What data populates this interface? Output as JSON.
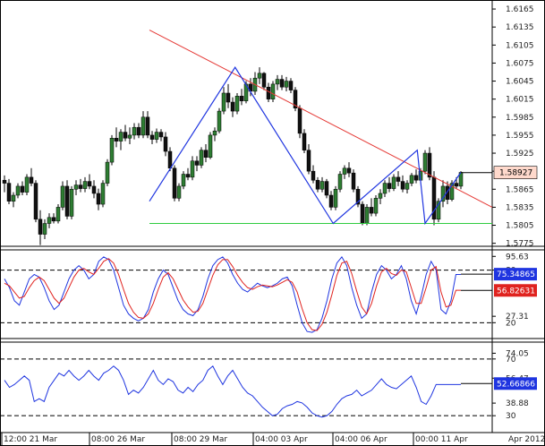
{
  "chart_data": [
    {
      "type": "candlestick",
      "panel": "price",
      "y_ticks": [
        "1.6165",
        "1.6135",
        "1.6105",
        "1.6075",
        "1.6045",
        "1.6015",
        "1.5985",
        "1.5955",
        "1.5925",
        "1.5895",
        "1.5865",
        "1.5835",
        "1.5805",
        "1.5775"
      ],
      "ylim": [
        1.577,
        1.618
      ],
      "current_price": "1.58927",
      "colors": {
        "bull": "#2e7d32",
        "bear": "#111111",
        "resistance": "#e53935",
        "support": "#2ecc40",
        "pattern": "#1f35e0",
        "tag_bg": "#ffd9cc"
      },
      "ohlc": [
        [
          1.588,
          1.5888,
          1.586,
          1.5875
        ],
        [
          1.5875,
          1.5882,
          1.584,
          1.5845
        ],
        [
          1.5845,
          1.586,
          1.5835,
          1.5855
        ],
        [
          1.5855,
          1.5875,
          1.585,
          1.587
        ],
        [
          1.587,
          1.5878,
          1.5855,
          1.586
        ],
        [
          1.586,
          1.589,
          1.5855,
          1.5885
        ],
        [
          1.5885,
          1.59,
          1.587,
          1.5875
        ],
        [
          1.5875,
          1.588,
          1.581,
          1.5815
        ],
        [
          1.5815,
          1.583,
          1.5772,
          1.579
        ],
        [
          1.579,
          1.5815,
          1.5782,
          1.5808
        ],
        [
          1.5808,
          1.5825,
          1.58,
          1.5818
        ],
        [
          1.5818,
          1.5825,
          1.5808,
          1.5812
        ],
        [
          1.5812,
          1.584,
          1.5808,
          1.5835
        ],
        [
          1.5835,
          1.5878,
          1.583,
          1.587
        ],
        [
          1.587,
          1.588,
          1.5815,
          1.582
        ],
        [
          1.582,
          1.587,
          1.5815,
          1.5865
        ],
        [
          1.5865,
          1.588,
          1.5855,
          1.5872
        ],
        [
          1.5872,
          1.5882,
          1.586,
          1.5866
        ],
        [
          1.5866,
          1.5885,
          1.586,
          1.5878
        ],
        [
          1.5878,
          1.589,
          1.5865,
          1.587
        ],
        [
          1.587,
          1.588,
          1.585,
          1.5858
        ],
        [
          1.5858,
          1.5866,
          1.583,
          1.584
        ],
        [
          1.584,
          1.588,
          1.5835,
          1.5875
        ],
        [
          1.5875,
          1.5915,
          1.587,
          1.591
        ],
        [
          1.591,
          1.5955,
          1.5905,
          1.595
        ],
        [
          1.595,
          1.5968,
          1.5935,
          1.5945
        ],
        [
          1.5945,
          1.5965,
          1.593,
          1.596
        ],
        [
          1.596,
          1.5972,
          1.5945,
          1.595
        ],
        [
          1.595,
          1.5968,
          1.594,
          1.5955
        ],
        [
          1.5955,
          1.5975,
          1.5948,
          1.5968
        ],
        [
          1.5968,
          1.5975,
          1.595,
          1.5955
        ],
        [
          1.5955,
          1.5995,
          1.595,
          1.5985
        ],
        [
          1.5985,
          1.5995,
          1.595,
          1.5955
        ],
        [
          1.5955,
          1.5962,
          1.594,
          1.5948
        ],
        [
          1.5948,
          1.5966,
          1.5942,
          1.596
        ],
        [
          1.596,
          1.5965,
          1.5945,
          1.5952
        ],
        [
          1.5952,
          1.596,
          1.592,
          1.5928
        ],
        [
          1.5928,
          1.5935,
          1.5895,
          1.59
        ],
        [
          1.59,
          1.5905,
          1.5845,
          1.585
        ],
        [
          1.585,
          1.5875,
          1.5845,
          1.587
        ],
        [
          1.587,
          1.5895,
          1.5865,
          1.589
        ],
        [
          1.589,
          1.59,
          1.588,
          1.5885
        ],
        [
          1.5885,
          1.592,
          1.588,
          1.5912
        ],
        [
          1.5912,
          1.592,
          1.5895,
          1.5905
        ],
        [
          1.5905,
          1.5935,
          1.59,
          1.593
        ],
        [
          1.593,
          1.594,
          1.591,
          1.5918
        ],
        [
          1.5918,
          1.596,
          1.5915,
          1.5955
        ],
        [
          1.5955,
          1.5968,
          1.5945,
          1.5962
        ],
        [
          1.5962,
          1.6,
          1.5958,
          1.5995
        ],
        [
          1.5995,
          1.6035,
          1.599,
          1.6025
        ],
        [
          1.6025,
          1.604,
          1.6,
          1.601
        ],
        [
          1.601,
          1.6018,
          1.5985,
          1.5995
        ],
        [
          1.5995,
          1.6025,
          1.599,
          1.602
        ],
        [
          1.602,
          1.6032,
          1.6005,
          1.6012
        ],
        [
          1.6012,
          1.6045,
          1.6008,
          1.604
        ],
        [
          1.604,
          1.605,
          1.602,
          1.6028
        ],
        [
          1.6028,
          1.606,
          1.6022,
          1.605
        ],
        [
          1.605,
          1.6068,
          1.604,
          1.6058
        ],
        [
          1.6058,
          1.606,
          1.603,
          1.6035
        ],
        [
          1.6035,
          1.6042,
          1.601,
          1.6015
        ],
        [
          1.6015,
          1.6045,
          1.601,
          1.604
        ],
        [
          1.604,
          1.6055,
          1.603,
          1.6048
        ],
        [
          1.6048,
          1.6055,
          1.603,
          1.6035
        ],
        [
          1.6035,
          1.6052,
          1.6028,
          1.6045
        ],
        [
          1.6045,
          1.605,
          1.6025,
          1.603
        ],
        [
          1.603,
          1.6035,
          1.5995,
          1.6
        ],
        [
          1.6,
          1.6005,
          1.595,
          1.5958
        ],
        [
          1.5958,
          1.5965,
          1.5925,
          1.593
        ],
        [
          1.593,
          1.594,
          1.589,
          1.5895
        ],
        [
          1.5895,
          1.5905,
          1.5875,
          1.588
        ],
        [
          1.588,
          1.5885,
          1.586,
          1.5865
        ],
        [
          1.5865,
          1.5885,
          1.586,
          1.5878
        ],
        [
          1.5878,
          1.5882,
          1.585,
          1.5855
        ],
        [
          1.5855,
          1.5862,
          1.583,
          1.5835
        ],
        [
          1.5835,
          1.587,
          1.583,
          1.5865
        ],
        [
          1.5865,
          1.5895,
          1.586,
          1.589
        ],
        [
          1.589,
          1.5905,
          1.5882,
          1.59
        ],
        [
          1.59,
          1.591,
          1.5885,
          1.5892
        ],
        [
          1.5892,
          1.5898,
          1.586,
          1.5865
        ],
        [
          1.5865,
          1.587,
          1.5835,
          1.584
        ],
        [
          1.584,
          1.5845,
          1.5805,
          1.5808
        ],
        [
          1.5808,
          1.584,
          1.5805,
          1.5835
        ],
        [
          1.5835,
          1.585,
          1.582,
          1.5825
        ],
        [
          1.5825,
          1.5855,
          1.582,
          1.585
        ],
        [
          1.585,
          1.5865,
          1.584,
          1.5858
        ],
        [
          1.5858,
          1.588,
          1.5852,
          1.5875
        ],
        [
          1.5875,
          1.5885,
          1.586,
          1.5866
        ],
        [
          1.5866,
          1.589,
          1.5862,
          1.5885
        ],
        [
          1.5885,
          1.5895,
          1.587,
          1.5878
        ],
        [
          1.5878,
          1.5888,
          1.586,
          1.5865
        ],
        [
          1.5865,
          1.588,
          1.5858,
          1.5875
        ],
        [
          1.5875,
          1.5892,
          1.587,
          1.5888
        ],
        [
          1.5888,
          1.5898,
          1.5875,
          1.588
        ],
        [
          1.588,
          1.59,
          1.5875,
          1.5895
        ],
        [
          1.5895,
          1.593,
          1.589,
          1.5925
        ],
        [
          1.5925,
          1.5935,
          1.588,
          1.5885
        ],
        [
          1.5885,
          1.5895,
          1.5805,
          1.5815
        ],
        [
          1.5815,
          1.585,
          1.581,
          1.5845
        ],
        [
          1.5845,
          1.588,
          1.5835,
          1.587
        ],
        [
          1.587,
          1.5878,
          1.584,
          1.5848
        ],
        [
          1.5848,
          1.588,
          1.5845,
          1.5875
        ],
        [
          1.5875,
          1.5885,
          1.5865,
          1.587
        ],
        [
          1.587,
          1.5895,
          1.5865,
          1.5893
        ]
      ],
      "lines": {
        "resistance": [
          [
            1.613,
            0
          ],
          [
            1.5835,
            1
          ]
        ],
        "support_level": 1.5808,
        "pattern": [
          [
            1.5845,
            0.0
          ],
          [
            1.6068,
            0.275
          ],
          [
            1.5808,
            0.59
          ],
          [
            1.593,
            0.86
          ],
          [
            1.5808,
            0.885
          ],
          [
            1.5893,
            1.0
          ]
        ]
      }
    },
    {
      "type": "line",
      "panel": "stochastic",
      "y_ticks": [
        "95.63",
        "80",
        "27.31",
        "20"
      ],
      "levels": [
        80,
        20
      ],
      "ylim": [
        5,
        100
      ],
      "main_value": "75.34865",
      "signal_value": "56.82631",
      "series": [
        {
          "color": "#1f35e0",
          "values": [
            70,
            60,
            45,
            40,
            55,
            70,
            75,
            72,
            60,
            45,
            35,
            40,
            55,
            70,
            80,
            85,
            80,
            70,
            75,
            90,
            95,
            92,
            80,
            60,
            40,
            30,
            25,
            22,
            25,
            35,
            55,
            70,
            80,
            75,
            60,
            45,
            35,
            30,
            28,
            35,
            50,
            70,
            85,
            92,
            95,
            88,
            75,
            65,
            58,
            55,
            60,
            65,
            62,
            60,
            62,
            65,
            70,
            72,
            62,
            40,
            20,
            10,
            9,
            12,
            25,
            45,
            70,
            88,
            95,
            85,
            60,
            40,
            25,
            30,
            55,
            75,
            85,
            80,
            70,
            75,
            85,
            70,
            45,
            30,
            50,
            75,
            90,
            80,
            35,
            30,
            45,
            75,
            75
          ]
        },
        {
          "color": "#e0231f",
          "values": [
            65,
            62,
            55,
            48,
            50,
            60,
            68,
            72,
            68,
            58,
            48,
            42,
            48,
            60,
            72,
            80,
            82,
            78,
            75,
            82,
            90,
            93,
            88,
            75,
            58,
            42,
            32,
            26,
            25,
            30,
            42,
            58,
            72,
            77,
            70,
            58,
            46,
            38,
            32,
            33,
            42,
            58,
            74,
            86,
            92,
            92,
            84,
            74,
            66,
            60,
            58,
            61,
            63,
            62,
            61,
            63,
            66,
            69,
            66,
            55,
            36,
            20,
            12,
            11,
            18,
            32,
            52,
            74,
            88,
            90,
            76,
            56,
            38,
            30,
            42,
            62,
            78,
            82,
            76,
            74,
            80,
            78,
            60,
            42,
            42,
            60,
            80,
            84,
            55,
            38,
            40,
            57,
            57
          ]
        }
      ]
    },
    {
      "type": "line",
      "panel": "rsi",
      "y_ticks": [
        "74.05",
        "70",
        "56.47",
        "38.88",
        "30"
      ],
      "levels": [
        70,
        30
      ],
      "ylim": [
        20,
        80
      ],
      "value": "52.66866",
      "series": [
        {
          "color": "#1f35e0",
          "values": [
            55,
            50,
            52,
            55,
            58,
            55,
            40,
            42,
            40,
            50,
            55,
            60,
            58,
            62,
            58,
            55,
            58,
            62,
            58,
            55,
            60,
            62,
            65,
            62,
            55,
            45,
            48,
            46,
            50,
            56,
            62,
            55,
            52,
            56,
            54,
            48,
            46,
            50,
            47,
            52,
            55,
            62,
            65,
            58,
            52,
            58,
            62,
            56,
            50,
            46,
            44,
            40,
            36,
            33,
            30,
            31,
            35,
            37,
            38,
            40,
            39,
            36,
            32,
            30,
            29,
            30,
            33,
            38,
            42,
            44,
            45,
            48,
            44,
            46,
            48,
            52,
            56,
            52,
            50,
            49,
            52,
            55,
            58,
            50,
            40,
            38,
            44,
            52,
            52,
            52,
            52,
            52,
            52
          ]
        }
      ]
    }
  ],
  "time_axis": {
    "labels": [
      "12:00 21 Mar",
      "08:00 26 Mar",
      "08:00 29 Mar",
      "04:00 03 Apr",
      "04:00 06 Apr",
      "00:00 11 Apr",
      "Apr 2012"
    ]
  }
}
